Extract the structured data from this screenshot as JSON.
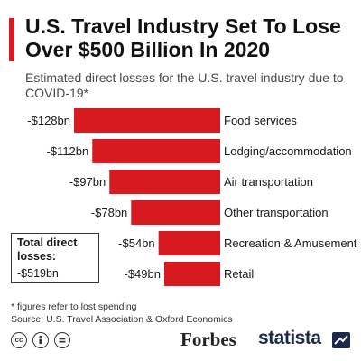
{
  "header": {
    "title": "U.S. Travel Industry Set To Lose Over $500 Billion In 2020",
    "subtitle": "Estimated direct losses for the U.S. travel industry due to COVID-19*"
  },
  "chart_data": {
    "type": "bar",
    "orientation": "horizontal",
    "title": "U.S. Travel Industry Set To Lose Over $500 Billion In 2020",
    "subtitle": "Estimated direct losses for the U.S. travel industry due to COVID-19*",
    "categories": [
      "Food services",
      "Lodging/accommodation",
      "Air transportation",
      "Other transportation",
      "Recreation & Amusement",
      "Retail"
    ],
    "values": [
      -128,
      -112,
      -97,
      -78,
      -54,
      -49
    ],
    "value_labels": [
      "-$128bn",
      "-$112bn",
      "-$97bn",
      "-$78bn",
      "-$54bn",
      "-$49bn"
    ],
    "unit": "bn",
    "xlim": [
      -128,
      0
    ],
    "grid": false,
    "legend": "none",
    "bar_color": "#d71920"
  },
  "total": {
    "label": "Total direct losses:",
    "value": "-$519bn"
  },
  "footnotes": {
    "note": "* figures refer to lost spending",
    "source": "Source: U.S. Travel Association & Oxford Economics"
  },
  "footer": {
    "cc_icons": [
      "cc-icon",
      "attribution-icon",
      "equal-icon"
    ],
    "forbes_logo": "Forbes",
    "statista_logo": "statista"
  },
  "colors": {
    "accent": "#d71920",
    "brand_navy": "#1b2a4a"
  }
}
